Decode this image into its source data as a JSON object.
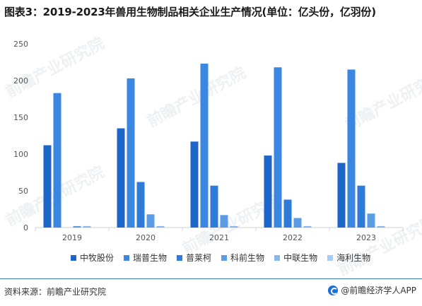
{
  "title": "图表3：2019-2023年兽用生物制品相关企业生产情况(单位：亿头份，亿羽份)",
  "source": "资料来源：前瞻产业研究院",
  "brand": "@前瞻经济学人APP",
  "watermark": "前瞻产业研究院",
  "colors": {
    "axis": "#d0d0d0",
    "tick_text": "#555555",
    "series": [
      "#1f65c9",
      "#3a86e0",
      "#2f7bd8",
      "#5c9ce6",
      "#86b8ee",
      "#a7ccf3"
    ]
  },
  "chart_data": {
    "type": "bar",
    "title": "图表3：2019-2023年兽用生物制品相关企业生产情况(单位：亿头份，亿羽份)",
    "categories": [
      "2019",
      "2020",
      "2021",
      "2022",
      "2023"
    ],
    "ylim": [
      0,
      250
    ],
    "yticks": [
      0,
      50,
      100,
      150,
      200,
      250
    ],
    "grid": false,
    "legend_position": "bottom",
    "series": [
      {
        "name": "中牧股份",
        "values": [
          112,
          135,
          117,
          98,
          88
        ]
      },
      {
        "name": "瑞普生物",
        "values": [
          183,
          203,
          223,
          218,
          215
        ]
      },
      {
        "name": "普莱柯",
        "values": [
          0,
          62,
          57,
          38,
          57
        ]
      },
      {
        "name": "科前生物",
        "values": [
          2,
          18,
          17,
          13,
          19
        ]
      },
      {
        "name": "中联生物",
        "values": [
          2,
          2,
          2,
          2,
          2
        ]
      },
      {
        "name": "海利生物",
        "values": [
          0,
          0,
          0,
          0,
          0
        ]
      }
    ]
  }
}
